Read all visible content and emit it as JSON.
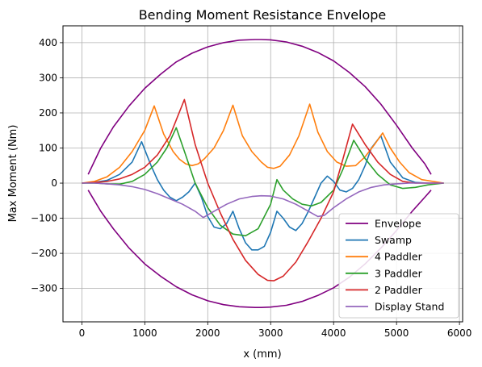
{
  "chart_data": {
    "type": "line",
    "title": "Bending Moment Resistance Envelope",
    "xlabel": "x (mm)",
    "ylabel": "Max Moment (Nm)",
    "xlim": [
      -300,
      6050
    ],
    "ylim": [
      -395,
      448
    ],
    "xticks": [
      0,
      1000,
      2000,
      3000,
      4000,
      5000,
      6000
    ],
    "yticks": [
      -300,
      -200,
      -100,
      0,
      100,
      200,
      300,
      400
    ],
    "grid": true,
    "legend_position": "lower right",
    "series": [
      {
        "name": "Envelope",
        "color": "#800080",
        "x": [
          100,
          300,
          500,
          750,
          1000,
          1250,
          1500,
          1750,
          2000,
          2250,
          2500,
          2750,
          2850,
          3000,
          3250,
          3500,
          3750,
          4000,
          4250,
          4500,
          4750,
          5000,
          5250,
          5450,
          5550
        ],
        "y": [
          25,
          100,
          160,
          220,
          270,
          310,
          345,
          370,
          388,
          400,
          407,
          409,
          409,
          408,
          402,
          390,
          372,
          348,
          315,
          275,
          225,
          165,
          100,
          55,
          25
        ]
      },
      {
        "name": "Envelope (lower)",
        "color": "#800080",
        "x": [
          100,
          300,
          500,
          750,
          1000,
          1250,
          1500,
          1750,
          2000,
          2250,
          2500,
          2750,
          2850,
          3000,
          3250,
          3500,
          3750,
          4000,
          4250,
          4500,
          4750,
          5000,
          5250,
          5450,
          5550
        ],
        "y": [
          -20,
          -80,
          -130,
          -185,
          -230,
          -265,
          -295,
          -318,
          -335,
          -346,
          -352,
          -354,
          -354,
          -353,
          -348,
          -337,
          -320,
          -298,
          -268,
          -230,
          -185,
          -135,
          -80,
          -40,
          -20
        ]
      },
      {
        "name": "Swamp",
        "color": "#1f77b4",
        "x": [
          0,
          200,
          400,
          600,
          800,
          950,
          1100,
          1200,
          1300,
          1400,
          1500,
          1600,
          1700,
          1800,
          1900,
          2000,
          2100,
          2200,
          2300,
          2400,
          2500,
          2600,
          2700,
          2800,
          2900,
          3000,
          3100,
          3200,
          3300,
          3400,
          3500,
          3600,
          3700,
          3800,
          3900,
          4000,
          4100,
          4200,
          4300,
          4400,
          4500,
          4600,
          4750,
          4900,
          5100,
          5300,
          5500,
          5750
        ],
        "y": [
          0,
          2,
          8,
          25,
          60,
          118,
          50,
          10,
          -20,
          -40,
          -50,
          -40,
          -25,
          0,
          -40,
          -95,
          -125,
          -130,
          -115,
          -80,
          -130,
          -170,
          -190,
          -190,
          -180,
          -140,
          -80,
          -100,
          -125,
          -135,
          -115,
          -80,
          -40,
          0,
          20,
          5,
          -20,
          -25,
          -15,
          10,
          50,
          100,
          135,
          60,
          15,
          2,
          0,
          0
        ]
      },
      {
        "name": "4 Paddler",
        "color": "#ff7f0e",
        "x": [
          0,
          200,
          400,
          600,
          800,
          1000,
          1150,
          1300,
          1450,
          1550,
          1650,
          1750,
          1850,
          1950,
          2100,
          2250,
          2400,
          2550,
          2700,
          2850,
          2950,
          3050,
          3150,
          3300,
          3450,
          3620,
          3750,
          3900,
          4050,
          4200,
          4350,
          4500,
          4650,
          4780,
          4900,
          5050,
          5200,
          5400,
          5750
        ],
        "y": [
          0,
          5,
          18,
          45,
          90,
          150,
          220,
          140,
          90,
          68,
          55,
          50,
          55,
          70,
          100,
          150,
          222,
          135,
          90,
          60,
          45,
          42,
          48,
          80,
          135,
          225,
          145,
          90,
          60,
          48,
          50,
          75,
          110,
          143,
          100,
          60,
          30,
          10,
          0
        ]
      },
      {
        "name": "3 Paddler",
        "color": "#2ca02c",
        "x": [
          0,
          200,
          400,
          600,
          800,
          1000,
          1200,
          1350,
          1500,
          1650,
          1800,
          2000,
          2200,
          2400,
          2600,
          2800,
          3000,
          3100,
          3200,
          3350,
          3500,
          3650,
          3800,
          4000,
          4150,
          4320,
          4500,
          4700,
          4900,
          5100,
          5300,
          5500,
          5750
        ],
        "y": [
          0,
          0,
          -2,
          -3,
          5,
          25,
          60,
          100,
          158,
          80,
          0,
          -70,
          -120,
          -145,
          -150,
          -130,
          -60,
          10,
          -20,
          -45,
          -60,
          -65,
          -55,
          -20,
          40,
          122,
          70,
          25,
          -5,
          -15,
          -12,
          -5,
          0
        ]
      },
      {
        "name": "2 Paddler",
        "color": "#d62728",
        "x": [
          0,
          200,
          400,
          600,
          800,
          1000,
          1200,
          1400,
          1630,
          1800,
          2000,
          2200,
          2400,
          2600,
          2800,
          2950,
          3050,
          3200,
          3400,
          3600,
          3800,
          4000,
          4150,
          4300,
          4500,
          4700,
          4900,
          5100,
          5300,
          5500,
          5750
        ],
        "y": [
          0,
          2,
          5,
          12,
          25,
          45,
          80,
          135,
          238,
          110,
          0,
          -85,
          -160,
          -220,
          -260,
          -277,
          -278,
          -265,
          -225,
          -165,
          -100,
          -25,
          70,
          168,
          110,
          60,
          25,
          5,
          0,
          0,
          0
        ]
      },
      {
        "name": "Display Stand",
        "color": "#9467bd",
        "x": [
          0,
          200,
          400,
          600,
          800,
          1000,
          1200,
          1400,
          1600,
          1800,
          1930,
          2100,
          2300,
          2500,
          2700,
          2850,
          3000,
          3200,
          3400,
          3600,
          3750,
          3850,
          4000,
          4200,
          4400,
          4600,
          4800,
          5000,
          5200,
          5400,
          5750
        ],
        "y": [
          0,
          0,
          -2,
          -5,
          -10,
          -18,
          -30,
          -45,
          -60,
          -80,
          -98,
          -80,
          -60,
          -45,
          -38,
          -36,
          -37,
          -45,
          -60,
          -80,
          -95,
          -92,
          -70,
          -45,
          -25,
          -12,
          -5,
          -2,
          0,
          0,
          0
        ]
      }
    ]
  }
}
